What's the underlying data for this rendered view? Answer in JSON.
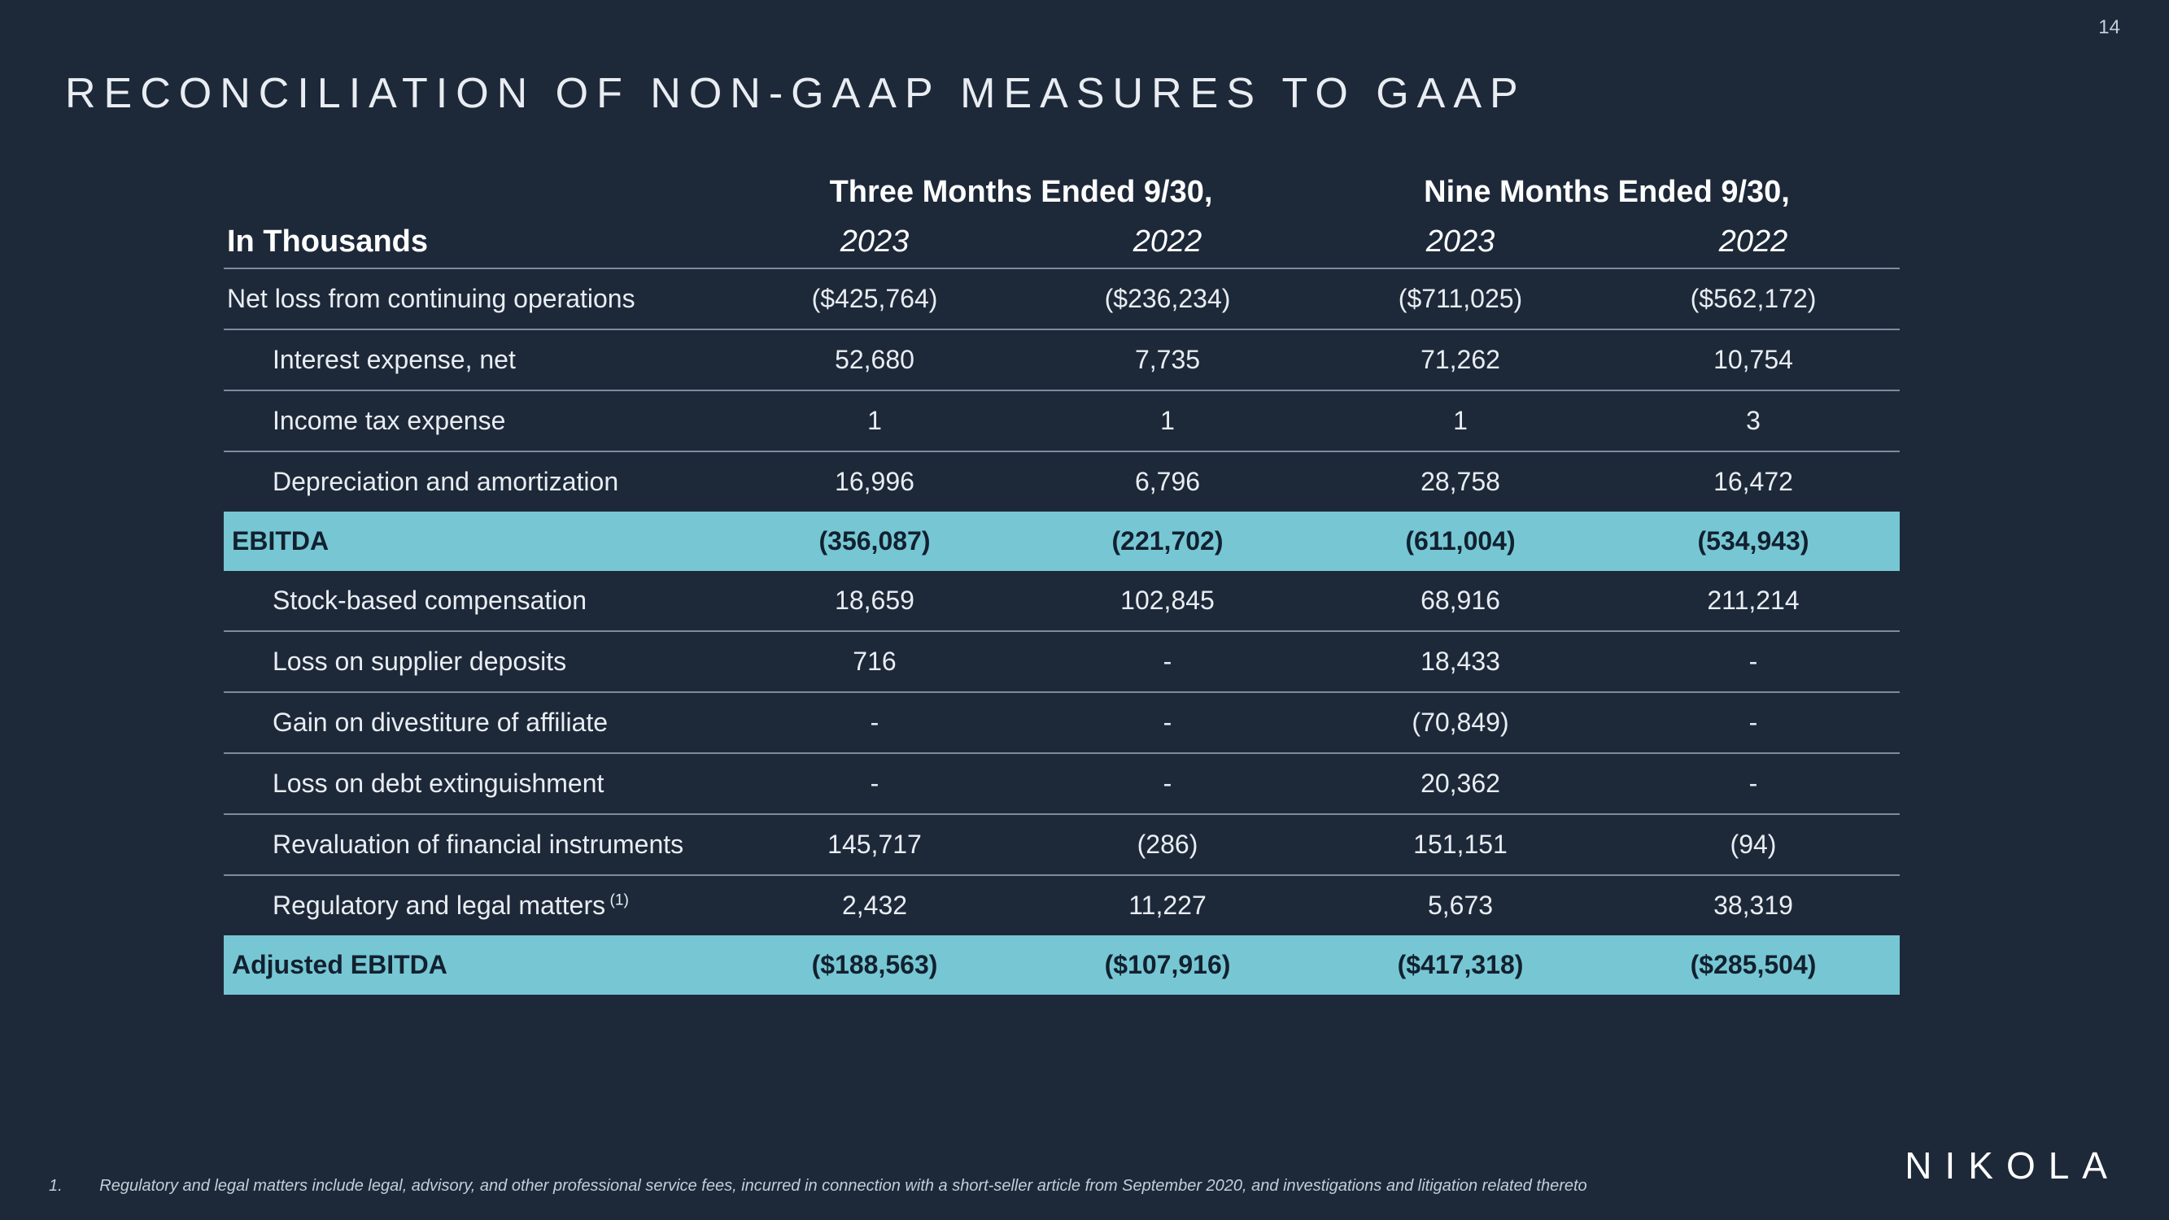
{
  "page_number": "14",
  "title": "RECONCILIATION OF NON-GAAP MEASURES TO GAAP",
  "logo": "NIKOLA",
  "footnote_num": "1.",
  "footnote_text": "Regulatory and legal matters include legal, advisory, and other professional service fees, incurred in connection with a short-seller article from September 2020, and investigations and litigation related thereto",
  "table": {
    "row_label_header": "In Thousands",
    "group_headers": [
      "Three Months Ended 9/30,",
      "Nine Months Ended 9/30,"
    ],
    "year_headers": [
      "2023",
      "2022",
      "2023",
      "2022"
    ],
    "rows": [
      {
        "label": "Net loss from continuing operations",
        "indent": false,
        "highlight": false,
        "rule": true,
        "values": [
          "($425,764)",
          "($236,234)",
          "($711,025)",
          "($562,172)"
        ]
      },
      {
        "label": "Interest expense, net",
        "indent": true,
        "highlight": false,
        "rule": true,
        "values": [
          "52,680",
          "7,735",
          "71,262",
          "10,754"
        ]
      },
      {
        "label": "Income tax expense",
        "indent": true,
        "highlight": false,
        "rule": true,
        "values": [
          "1",
          "1",
          "1",
          "3"
        ]
      },
      {
        "label": "Depreciation and amortization",
        "indent": true,
        "highlight": false,
        "rule": false,
        "values": [
          "16,996",
          "6,796",
          "28,758",
          "16,472"
        ]
      },
      {
        "label": "EBITDA",
        "indent": false,
        "highlight": true,
        "rule": false,
        "values": [
          "(356,087)",
          "(221,702)",
          "(611,004)",
          "(534,943)"
        ]
      },
      {
        "label": "Stock-based compensation",
        "indent": true,
        "highlight": false,
        "rule": true,
        "values": [
          "18,659",
          "102,845",
          "68,916",
          "211,214"
        ]
      },
      {
        "label": "Loss on supplier deposits",
        "indent": true,
        "highlight": false,
        "rule": true,
        "values": [
          "716",
          "-",
          "18,433",
          "-"
        ]
      },
      {
        "label": "Gain on divestiture of affiliate",
        "indent": true,
        "highlight": false,
        "rule": true,
        "values": [
          "-",
          "-",
          "(70,849)",
          "-"
        ]
      },
      {
        "label": "Loss on debt extinguishment",
        "indent": true,
        "highlight": false,
        "rule": true,
        "values": [
          "-",
          "-",
          "20,362",
          "-"
        ]
      },
      {
        "label": "Revaluation of financial instruments",
        "indent": true,
        "highlight": false,
        "rule": true,
        "values": [
          "145,717",
          "(286)",
          "151,151",
          "(94)"
        ]
      },
      {
        "label": "Regulatory and legal matters",
        "sup": "(1)",
        "indent": true,
        "highlight": false,
        "rule": false,
        "values": [
          "2,432",
          "11,227",
          "5,673",
          "38,319"
        ]
      },
      {
        "label": "Adjusted EBITDA",
        "indent": false,
        "highlight": true,
        "rule": false,
        "values": [
          "($188,563)",
          "($107,916)",
          "($417,318)",
          "($285,504)"
        ]
      }
    ]
  }
}
